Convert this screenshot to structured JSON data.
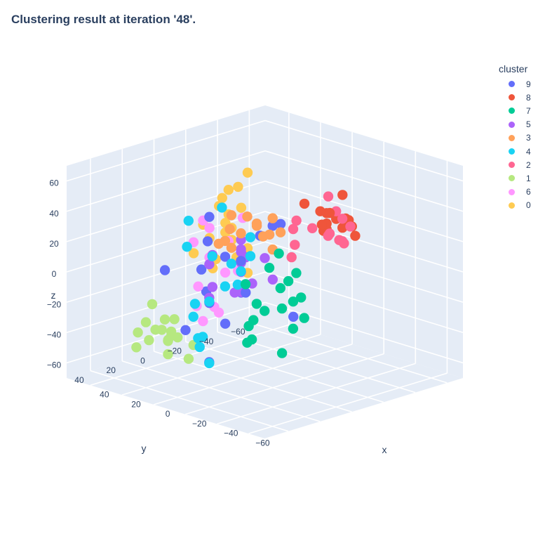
{
  "chart_data": {
    "type": "scatter3d",
    "title": "Clustering result at iteration '48'.",
    "axes": {
      "x": {
        "label": "x",
        "range": [
          -70,
          55
        ],
        "ticks": [
          -60,
          -40,
          -20,
          0,
          20,
          40
        ],
        "tick_labels": [
          "−60",
          "−40",
          "−20",
          "0",
          "20",
          "40"
        ]
      },
      "y": {
        "label": "y",
        "range": [
          -70,
          55
        ],
        "ticks": [
          -60,
          -40,
          -20,
          0,
          20,
          40
        ],
        "tick_labels": [
          "−60",
          "−40",
          "−20",
          "0",
          "20",
          "40"
        ]
      },
      "z": {
        "label": "z",
        "range": [
          -70,
          70
        ],
        "ticks": [
          -60,
          -40,
          -20,
          0,
          20,
          40,
          60
        ],
        "tick_labels": [
          "−60",
          "−40",
          "−20",
          "0",
          "20",
          "40",
          "60"
        ]
      }
    },
    "legend": {
      "title": "cluster",
      "placement": "top-right",
      "entries": [
        {
          "name": "9",
          "color": "#636efa"
        },
        {
          "name": "8",
          "color": "#ef553b"
        },
        {
          "name": "7",
          "color": "#00cc96"
        },
        {
          "name": "5",
          "color": "#ab63fa"
        },
        {
          "name": "3",
          "color": "#ffa15a"
        },
        {
          "name": "4",
          "color": "#19d3f3"
        },
        {
          "name": "2",
          "color": "#ff6692"
        },
        {
          "name": "1",
          "color": "#b6e880"
        },
        {
          "name": "6",
          "color": "#ff97ff"
        },
        {
          "name": "0",
          "color": "#fecb52"
        }
      ]
    },
    "series": [
      {
        "name": "9",
        "color": "#636efa",
        "x": [
          10,
          5,
          20,
          -10,
          0,
          15,
          25,
          -20,
          -5,
          8,
          12,
          -15,
          30,
          18,
          -25,
          22,
          3,
          -8
        ],
        "y": [
          -10,
          5,
          15,
          -15,
          0,
          10,
          -5,
          20,
          25,
          -20,
          8,
          12,
          -8,
          30,
          5,
          -12,
          18,
          -25
        ],
        "z": [
          -20,
          10,
          -40,
          30,
          -10,
          0,
          -30,
          20,
          -50,
          15,
          35,
          -5,
          -25,
          5,
          40,
          -45,
          25,
          -35
        ]
      },
      {
        "name": "8",
        "color": "#ef553b",
        "x": [
          -30,
          -25,
          -35,
          -20,
          -40,
          -28,
          -32,
          -22,
          -38,
          -26,
          -33,
          -18,
          -42,
          -24,
          -36,
          -30
        ],
        "y": [
          -30,
          -25,
          -35,
          -20,
          -28,
          -40,
          -22,
          -32,
          -26,
          -38,
          -18,
          -34,
          -24,
          -30,
          -20,
          -42
        ],
        "z": [
          35,
          40,
          30,
          45,
          38,
          28,
          42,
          25,
          33,
          47,
          36,
          22,
          41,
          30,
          44,
          20
        ]
      },
      {
        "name": "7",
        "color": "#00cc96",
        "x": [
          -45,
          -40,
          -50,
          -35,
          -55,
          -42,
          -48,
          -38,
          -52,
          -44,
          -36,
          -58,
          -46,
          -40,
          -50,
          -33,
          -47,
          -54
        ],
        "y": [
          20,
          25,
          15,
          30,
          22,
          35,
          18,
          28,
          12,
          26,
          32,
          20,
          38,
          16,
          24,
          30,
          14,
          28
        ],
        "z": [
          10,
          -5,
          20,
          -15,
          5,
          -20,
          15,
          0,
          -10,
          25,
          -25,
          8,
          -5,
          30,
          -30,
          12,
          -18,
          2
        ]
      },
      {
        "name": "5",
        "color": "#ab63fa",
        "x": [
          0,
          5,
          -5,
          10,
          -10,
          3,
          8,
          -8,
          12,
          -3,
          6,
          -12,
          2,
          9,
          -6
        ],
        "y": [
          0,
          -5,
          5,
          10,
          -10,
          15,
          -15,
          8,
          -8,
          3,
          12,
          -3,
          18,
          -12,
          6
        ],
        "z": [
          0,
          10,
          -10,
          5,
          -5,
          15,
          -15,
          20,
          -20,
          8,
          -8,
          12,
          -12,
          3,
          25
        ]
      },
      {
        "name": "3",
        "color": "#ffa15a",
        "x": [
          -20,
          -15,
          -25,
          -10,
          -30,
          -18,
          -22,
          -12,
          -28,
          -16,
          -24,
          -14,
          -26,
          -20
        ],
        "y": [
          10,
          15,
          5,
          20,
          12,
          25,
          8,
          18,
          3,
          22,
          14,
          28,
          6,
          16
        ],
        "z": [
          40,
          35,
          45,
          30,
          38,
          42,
          33,
          47,
          36,
          28,
          44,
          32,
          25,
          48
        ]
      },
      {
        "name": "4",
        "color": "#19d3f3",
        "x": [
          -10,
          -5,
          -15,
          0,
          -20,
          -8,
          -12,
          -2,
          -18,
          -6,
          -14,
          -4,
          5,
          -22,
          -16,
          2,
          -9
        ],
        "y": [
          20,
          25,
          15,
          30,
          22,
          35,
          18,
          28,
          12,
          26,
          32,
          38,
          24,
          16,
          40,
          10,
          42
        ],
        "z": [
          0,
          -10,
          10,
          -20,
          5,
          -30,
          15,
          -40,
          20,
          -50,
          25,
          30,
          -15,
          35,
          -25,
          45,
          50
        ]
      },
      {
        "name": "2",
        "color": "#ff6692",
        "x": [
          -45,
          -40,
          -50,
          -35,
          -48,
          -42,
          -38,
          -52,
          -44,
          -36,
          -46,
          -40,
          -30,
          -20
        ],
        "y": [
          -10,
          -5,
          -15,
          0,
          -8,
          -20,
          5,
          -12,
          -25,
          2,
          -18,
          8,
          -30,
          -35
        ],
        "z": [
          35,
          40,
          30,
          45,
          38,
          28,
          42,
          33,
          36,
          30,
          44,
          25,
          40,
          45
        ]
      },
      {
        "name": "1",
        "color": "#b6e880",
        "x": [
          15,
          20,
          10,
          25,
          5,
          18,
          22,
          12,
          28,
          8,
          16,
          24,
          14,
          30,
          20,
          10,
          26
        ],
        "y": [
          25,
          30,
          20,
          35,
          28,
          40,
          22,
          32,
          18,
          38,
          26,
          42,
          34,
          24,
          45,
          36,
          30
        ],
        "z": [
          -40,
          -35,
          -45,
          -30,
          -50,
          -38,
          -42,
          -33,
          -48,
          -36,
          -28,
          -44,
          -25,
          -40,
          -32,
          -46,
          -20
        ]
      },
      {
        "name": "6",
        "color": "#ff97ff",
        "x": [
          20,
          25,
          15,
          30,
          10,
          22,
          28,
          18,
          32,
          12,
          24,
          16,
          26,
          35
        ],
        "y": [
          -10,
          -5,
          -15,
          0,
          -8,
          5,
          -20,
          10,
          -12,
          2,
          -25,
          8,
          -2,
          -18
        ],
        "z": [
          -10,
          0,
          -20,
          10,
          -5,
          -15,
          5,
          -25,
          15,
          -30,
          20,
          -35,
          25,
          -40
        ]
      },
      {
        "name": "0",
        "color": "#fecb52",
        "x": [
          40,
          45,
          35,
          50,
          42,
          38,
          48,
          36,
          44,
          40,
          46,
          34,
          52,
          38,
          42,
          44,
          36,
          48,
          40
        ],
        "y": [
          -30,
          -25,
          -35,
          -20,
          -40,
          -28,
          -45,
          -22,
          -38,
          -32,
          -50,
          -26,
          -34,
          -42,
          -18,
          -48,
          -30,
          -36,
          -24
        ],
        "z": [
          10,
          0,
          20,
          -10,
          30,
          5,
          -20,
          25,
          -5,
          15,
          -15,
          35,
          -25,
          40,
          12,
          -30,
          8,
          22,
          -12
        ]
      }
    ]
  }
}
